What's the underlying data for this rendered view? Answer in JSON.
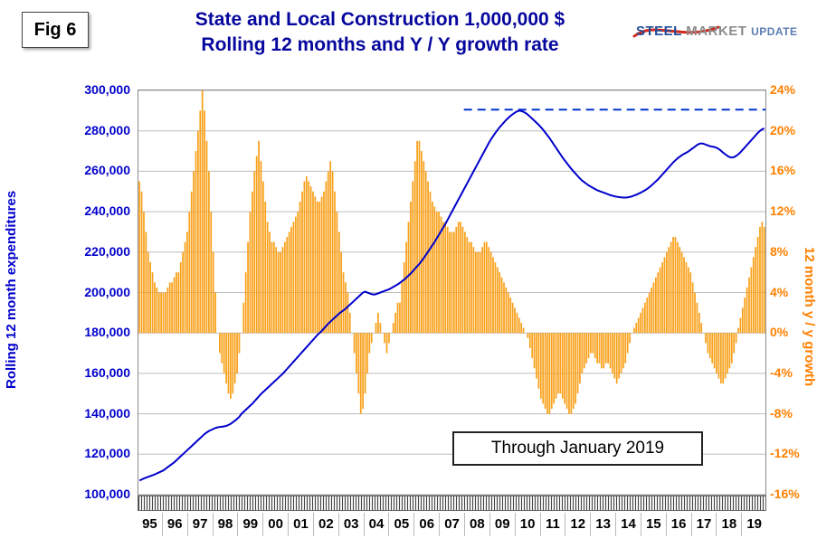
{
  "figure": {
    "label": "Fig 6"
  },
  "title": {
    "line1": "State and Local Construction 1,000,000 $",
    "line2": "Rolling 12 months and Y / Y growth rate",
    "color": "#06069E"
  },
  "logo": {
    "word1": "STEEL",
    "word2": "MARKET",
    "word3": "UPDATE",
    "swoosh_color": "#d22a1e"
  },
  "annotation": {
    "text": "Through January 2019"
  },
  "axes": {
    "left": {
      "title": "Rolling 12 month expenditures",
      "color": "#0000CC",
      "tick_labels": [
        "300,000",
        "280,000",
        "260,000",
        "240,000",
        "220,000",
        "200,000",
        "180,000",
        "160,000",
        "140,000",
        "120,000",
        "100,000"
      ]
    },
    "right": {
      "title": "12 month y / y growth",
      "color": "#FF8000",
      "tick_labels": [
        "24%",
        "20%",
        "16%",
        "12%",
        "8%",
        "4%",
        "0%",
        "-4%",
        "-8%",
        "-12%",
        "-16%"
      ]
    },
    "x": {
      "labels": [
        "95",
        "96",
        "97",
        "98",
        "99",
        "00",
        "01",
        "02",
        "03",
        "04",
        "05",
        "06",
        "07",
        "08",
        "09",
        "10",
        "11",
        "12",
        "13",
        "14",
        "15",
        "16",
        "17",
        "18",
        "19"
      ]
    }
  },
  "chart_data": {
    "type": "combo",
    "title": "State and Local Construction 1,000,000 $ — Rolling 12 months and Y / Y growth rate",
    "x_monthly": {
      "start": "1995-01",
      "end": "2019-01",
      "points": 289
    },
    "left_ylim": [
      100000,
      300000
    ],
    "right_ylim": [
      -16,
      24
    ],
    "grid": "horizontal",
    "series": [
      {
        "name": "Rolling 12 month expenditures",
        "type": "line",
        "axis": "left",
        "color": "#0000CC",
        "values": [
          107000,
          107500,
          108000,
          108400,
          108800,
          109200,
          109600,
          110000,
          110500,
          111000,
          111500,
          112000,
          112800,
          113600,
          114400,
          115200,
          116000,
          117000,
          118000,
          119000,
          120000,
          121000,
          122000,
          123000,
          124000,
          125000,
          126000,
          127000,
          128000,
          129000,
          130000,
          130800,
          131500,
          132000,
          132500,
          133000,
          133300,
          133500,
          133600,
          133800,
          134000,
          134500,
          135000,
          135800,
          136600,
          137500,
          138500,
          140000,
          141000,
          142000,
          143000,
          144000,
          145000,
          146200,
          147400,
          148600,
          149800,
          150800,
          151800,
          152800,
          153800,
          154800,
          155800,
          156800,
          157800,
          158800,
          159800,
          161000,
          162200,
          163400,
          164600,
          165800,
          167000,
          168200,
          169400,
          170600,
          171800,
          173000,
          174200,
          175400,
          176600,
          177800,
          179000,
          180000,
          181000,
          182200,
          183400,
          184600,
          185600,
          186600,
          187600,
          188600,
          189600,
          190400,
          191200,
          192000,
          193000,
          194000,
          195000,
          196000,
          197000,
          198000,
          199000,
          200000,
          200400,
          200000,
          199600,
          199200,
          199000,
          199200,
          199600,
          200000,
          200400,
          200800,
          201200,
          201600,
          202200,
          202800,
          203400,
          204000,
          204800,
          205600,
          206400,
          207400,
          208400,
          209400,
          210600,
          211800,
          213000,
          214200,
          215600,
          217000,
          218600,
          220200,
          221800,
          223400,
          225000,
          226800,
          228600,
          230400,
          232200,
          234000,
          236000,
          238000,
          240000,
          242000,
          244000,
          246000,
          248000,
          250000,
          252000,
          254000,
          256000,
          258000,
          260000,
          262000,
          264000,
          266000,
          268000,
          270000,
          272000,
          274000,
          275800,
          277400,
          279000,
          280400,
          281800,
          283000,
          284200,
          285400,
          286400,
          287400,
          288200,
          289000,
          289600,
          290000,
          289800,
          289400,
          288800,
          288000,
          287000,
          286000,
          285000,
          284000,
          283000,
          281800,
          280600,
          279200,
          277800,
          276400,
          274800,
          273200,
          271600,
          270000,
          268400,
          266800,
          265400,
          264000,
          262600,
          261200,
          260000,
          258800,
          257600,
          256400,
          255400,
          254600,
          253800,
          253000,
          252400,
          251800,
          251200,
          250600,
          250200,
          249800,
          249400,
          249000,
          248600,
          248200,
          247900,
          247600,
          247400,
          247200,
          247100,
          247000,
          247000,
          247100,
          247300,
          247600,
          248000,
          248400,
          248900,
          249400,
          250000,
          250600,
          251300,
          252100,
          253000,
          254000,
          255000,
          256000,
          257200,
          258400,
          259600,
          260800,
          262000,
          263200,
          264400,
          265400,
          266400,
          267200,
          268000,
          268600,
          269200,
          269800,
          270600,
          271400,
          272200,
          273000,
          273600,
          273800,
          273600,
          273200,
          272800,
          272400,
          272200,
          272000,
          271600,
          271000,
          270200,
          269200,
          268400,
          267600,
          267000,
          266800,
          267000,
          267600,
          268400,
          269400,
          270600,
          271800,
          273000,
          274200,
          275400,
          276600,
          277800,
          279000,
          280000,
          280800,
          281200
        ]
      },
      {
        "name": "12 month y / y growth",
        "type": "bar",
        "axis": "right",
        "color": "#F9A11B",
        "values": [
          15,
          14,
          12,
          10,
          8,
          7,
          6,
          5,
          4.5,
          4,
          4,
          4,
          4,
          4.5,
          5,
          5,
          5.5,
          6,
          6,
          7,
          8,
          9,
          10,
          12,
          14,
          16,
          18,
          20,
          22,
          24,
          22,
          19,
          16,
          12,
          8,
          4,
          0,
          -2,
          -3,
          -4,
          -5,
          -6,
          -6.5,
          -6,
          -5,
          -4,
          -2,
          0,
          3,
          6,
          9,
          12,
          14,
          16,
          17.5,
          19,
          17,
          15,
          13,
          11,
          10,
          9,
          9,
          8.5,
          8,
          8,
          8.5,
          9,
          9.5,
          10,
          10.5,
          11,
          11.5,
          12,
          13,
          14,
          15,
          15.5,
          15,
          14.5,
          14,
          13.5,
          13,
          13,
          13.5,
          14,
          15,
          16,
          17,
          16,
          14,
          12,
          10,
          8,
          6,
          5,
          4,
          2,
          0,
          -2,
          -4,
          -6,
          -8,
          -7.5,
          -6,
          -4,
          -2,
          -1,
          0,
          1,
          2,
          1,
          0,
          -1,
          -2,
          -1,
          0,
          1,
          2,
          3,
          3,
          5,
          7,
          9,
          11,
          13,
          15,
          17,
          19,
          19,
          18,
          17,
          16,
          15,
          14,
          13,
          12.5,
          12,
          12,
          11.5,
          11,
          11,
          10.5,
          10,
          10,
          10,
          10.5,
          11,
          11,
          10.5,
          10,
          9.5,
          9,
          9,
          8.5,
          8,
          8,
          8,
          8.5,
          9,
          9,
          8.5,
          8,
          7.5,
          7,
          6.5,
          6,
          5.5,
          5,
          4.5,
          4,
          3.5,
          3,
          2.5,
          2,
          1.5,
          1,
          0.5,
          0,
          -0.5,
          -1.5,
          -2.5,
          -3.5,
          -4.5,
          -5.5,
          -6.5,
          -7,
          -7.5,
          -8,
          -8,
          -7.5,
          -7,
          -6.5,
          -6,
          -6,
          -6.5,
          -7,
          -7.5,
          -8,
          -8,
          -7.5,
          -7,
          -6,
          -5,
          -4,
          -3.5,
          -3,
          -2.5,
          -2,
          -2,
          -2.5,
          -3,
          -3,
          -3.5,
          -3.5,
          -3,
          -3,
          -3.5,
          -4,
          -4.5,
          -5,
          -4.5,
          -4,
          -3.5,
          -3,
          -2,
          -1,
          0,
          0.5,
          1,
          1.5,
          2,
          2.5,
          3,
          3.5,
          4,
          4.5,
          5,
          5.5,
          6,
          6.5,
          7,
          7.5,
          8,
          8.5,
          9,
          9.5,
          9.5,
          9,
          8.5,
          8,
          7.5,
          7,
          6.5,
          6,
          5,
          4,
          3,
          2,
          1,
          0,
          -1,
          -2,
          -2.5,
          -3,
          -3.5,
          -4,
          -4.5,
          -5,
          -5,
          -4.5,
          -4,
          -3.5,
          -3,
          -2,
          -1,
          0.5,
          1.5,
          2.5,
          3.5,
          4.5,
          5.5,
          6.5,
          7.5,
          8.5,
          9.5,
          10.5,
          11,
          10.5
        ]
      }
    ],
    "reference_line": {
      "style": "dashed",
      "axis": "left",
      "value": 290500,
      "start_index": 150,
      "color": "#0033CC"
    }
  }
}
